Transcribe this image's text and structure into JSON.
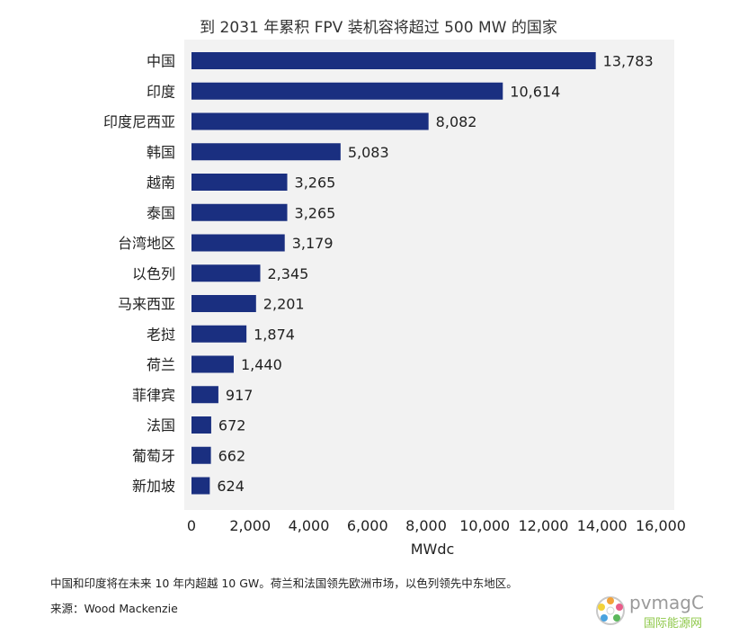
{
  "chart_data": {
    "type": "bar",
    "orientation": "horizontal",
    "title": "到 2031 年累积 FPV 装机容将超过 500 MW 的国家",
    "xlabel": "MWdc",
    "ylabel": "",
    "xlim": [
      0,
      16000
    ],
    "xticks": [
      "0",
      "2,000",
      "4,000",
      "6,000",
      "8,000",
      "10,000",
      "12,000",
      "14,000",
      "16,000"
    ],
    "categories": [
      "中国",
      "印度",
      "印度尼西亚",
      "韩国",
      "越南",
      "泰国",
      "台湾地区",
      "以色列",
      "马来西亚",
      "老挝",
      "荷兰",
      "菲律宾",
      "法国",
      "葡萄牙",
      "新加坡"
    ],
    "values": [
      13783,
      10614,
      8082,
      5083,
      3265,
      3265,
      3179,
      2345,
      2201,
      1874,
      1440,
      917,
      672,
      662,
      624
    ],
    "value_labels": [
      "13,783",
      "10,614",
      "8,082",
      "5,083",
      "3,265",
      "3,265",
      "3,179",
      "2,345",
      "2,201",
      "1,874",
      "1,440",
      "917",
      "672",
      "662",
      "624"
    ],
    "grid": false,
    "bar_color": "#1a2f80",
    "plot_background": "#f2f2f2"
  },
  "footer": {
    "note": "中国和印度将在未来 10 年内超越 10 GW。荷兰和法国领先欧洲市场，以色列领先中东地区。",
    "source": "来源：Wood Mackenzie"
  },
  "watermark": {
    "logo_text": "pvmagC",
    "logo_subtext": "国际能源网",
    "icon": "wechat-flower-icon"
  }
}
